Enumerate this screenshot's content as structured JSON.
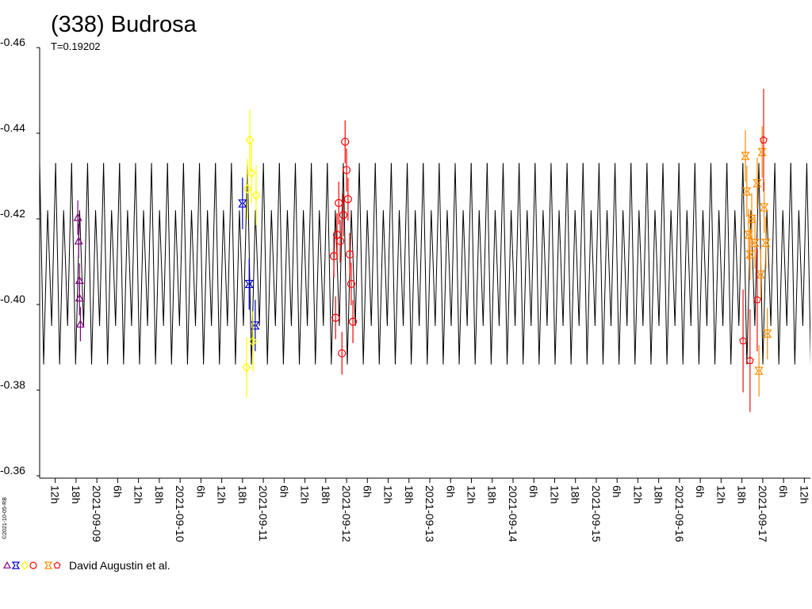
{
  "chart_data": {
    "type": "lightcurve",
    "title": "(338) Budrosa",
    "period": {
      "value": 0.19202,
      "label": "T=0.19202"
    },
    "credit": "©2021-10-05-RB",
    "legend": {
      "label": "David Augustin et al."
    },
    "ylim": [
      -0.36,
      -0.46
    ],
    "yticks": [
      -0.46,
      -0.44,
      -0.42,
      {
        "value": -0.4,
        "label": "-0.40"
      },
      -0.38,
      -0.36
    ],
    "xlim": [
      "2021-09-08T07:30",
      "2021-09-17T13:45"
    ],
    "xticks": [
      {
        "value": "2021-09-08T12:00",
        "label": "12h"
      },
      {
        "value": "2021-09-08T18:00",
        "label": "18h"
      },
      {
        "value": "2021-09-09T00:00",
        "label": "2021-09-09"
      },
      {
        "value": "2021-09-09T06:00",
        "label": "6h"
      },
      {
        "value": "2021-09-09T12:00",
        "label": "12h"
      },
      {
        "value": "2021-09-09T18:00",
        "label": "18h"
      },
      {
        "value": "2021-09-10T00:00",
        "label": "2021-09-10"
      },
      {
        "value": "2021-09-10T06:00",
        "label": "6h"
      },
      {
        "value": "2021-09-10T12:00",
        "label": "12h"
      },
      {
        "value": "2021-09-10T18:00",
        "label": "18h"
      },
      {
        "value": "2021-09-11T00:00",
        "label": "2021-09-11"
      },
      {
        "value": "2021-09-11T06:00",
        "label": "6h"
      },
      {
        "value": "2021-09-11T12:00",
        "label": "12h"
      },
      {
        "value": "2021-09-11T18:00",
        "label": "18h"
      },
      {
        "value": "2021-09-12T00:00",
        "label": "2021-09-12"
      },
      {
        "value": "2021-09-12T06:00",
        "label": "6h"
      },
      {
        "value": "2021-09-12T12:00",
        "label": "12h"
      },
      {
        "value": "2021-09-12T18:00",
        "label": "18h"
      },
      {
        "value": "2021-09-13T00:00",
        "label": "2021-09-13"
      },
      {
        "value": "2021-09-13T06:00",
        "label": "6h"
      },
      {
        "value": "2021-09-13T12:00",
        "label": "12h"
      },
      {
        "value": "2021-09-13T18:00",
        "label": "18h"
      },
      {
        "value": "2021-09-14T00:00",
        "label": "2021-09-14"
      },
      {
        "value": "2021-09-14T06:00",
        "label": "6h"
      },
      {
        "value": "2021-09-14T12:00",
        "label": "12h"
      },
      {
        "value": "2021-09-14T18:00",
        "label": "18h"
      },
      {
        "value": "2021-09-15T00:00",
        "label": "2021-09-15"
      },
      {
        "value": "2021-09-15T06:00",
        "label": "6h"
      },
      {
        "value": "2021-09-15T12:00",
        "label": "12h"
      },
      {
        "value": "2021-09-15T18:00",
        "label": "18h"
      },
      {
        "value": "2021-09-16T00:00",
        "label": "2021-09-16"
      },
      {
        "value": "2021-09-16T06:00",
        "label": "6h"
      },
      {
        "value": "2021-09-16T12:00",
        "label": "12h"
      },
      {
        "value": "2021-09-16T18:00",
        "label": "18h"
      },
      {
        "value": "2021-09-17T00:00",
        "label": "2021-09-17"
      },
      {
        "value": "2021-09-17T06:00",
        "label": "6h"
      },
      {
        "value": "2021-09-17T12:00",
        "label": "12h"
      }
    ],
    "model": {
      "color": "#000000",
      "phase": [
        0,
        0.125,
        0.25,
        0.375,
        0.5,
        0.625,
        0.75,
        0.875,
        1
      ],
      "values": [
        -0.433,
        -0.41,
        -0.386,
        -0.404,
        -0.422,
        -0.409,
        -0.395,
        -0.414,
        -0.433
      ]
    },
    "series": [
      {
        "color": "#800080",
        "marker": "triangle",
        "error": 0.004,
        "x": [
          "2021-09-08T18:30",
          "2021-09-08T18:45",
          "2021-09-08T19:00",
          "2021-09-08T19:00",
          "2021-09-08T19:15"
        ],
        "values": [
          -0.4203,
          -0.4148,
          -0.4056,
          -0.4015,
          -0.3954
        ]
      },
      {
        "color": "#0000cc",
        "marker": "star",
        "error": 0.006,
        "x": [
          "2021-09-10T18:00",
          "2021-09-10T19:55",
          "2021-09-10T21:40"
        ],
        "values": [
          -0.4236,
          -0.4048,
          -0.3951
        ]
      },
      {
        "color": "#ffff00",
        "marker": "diamond",
        "error": 0.007,
        "x": [
          "2021-09-10T19:10",
          "2021-09-10T19:25",
          "2021-09-10T20:05",
          "2021-09-10T20:35",
          "2021-09-10T21:00",
          "2021-09-10T21:55"
        ],
        "values": [
          -0.3853,
          -0.427,
          -0.4384,
          -0.4307,
          -0.3914,
          -0.4255
        ]
      },
      {
        "color": "#ff0000",
        "marker": "circle",
        "error": 0.005,
        "x": [
          "2021-09-11T20:20",
          "2021-09-11T20:50",
          "2021-09-11T21:15",
          "2021-09-11T21:45",
          "2021-09-11T22:10",
          "2021-09-11T22:40",
          "2021-09-11T23:05",
          "2021-09-11T23:35",
          "2021-09-12T00:00",
          "2021-09-12T00:25",
          "2021-09-12T00:55",
          "2021-09-12T01:20",
          "2021-09-12T01:50"
        ],
        "values": [
          -0.4113,
          -0.3969,
          -0.4163,
          -0.4237,
          -0.4148,
          -0.3886,
          -0.4209,
          -0.438,
          -0.4314,
          -0.4246,
          -0.4117,
          -0.4048,
          -0.396
        ]
      },
      {
        "color": "#ff8c00",
        "marker": "star",
        "error": 0.006,
        "x": [
          "2021-09-16T19:00",
          "2021-09-16T19:25",
          "2021-09-16T19:55",
          "2021-09-16T20:20",
          "2021-09-16T20:50",
          "2021-09-16T21:45",
          "2021-09-16T22:25",
          "2021-09-16T22:55",
          "2021-09-16T23:25",
          "2021-09-16T23:50",
          "2021-09-17T00:25",
          "2021-09-17T00:55",
          "2021-09-17T01:20"
        ],
        "values": [
          -0.4347,
          -0.4264,
          -0.4163,
          -0.4117,
          -0.42,
          -0.4144,
          -0.4283,
          -0.3845,
          -0.407,
          -0.4356,
          -0.4227,
          -0.4144,
          -0.3932
        ]
      },
      {
        "color": "#ee1111",
        "marker": "pentagon",
        "error": 0.012,
        "x": [
          "2021-09-16T18:20",
          "2021-09-16T20:20",
          "2021-09-16T22:25",
          "2021-09-17T00:15"
        ],
        "values": [
          -0.3915,
          -0.3869,
          -0.4011,
          -0.4384
        ]
      }
    ]
  }
}
